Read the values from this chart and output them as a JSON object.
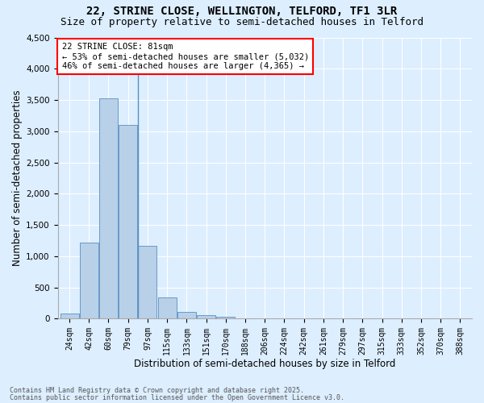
{
  "title1": "22, STRINE CLOSE, WELLINGTON, TELFORD, TF1 3LR",
  "title2": "Size of property relative to semi-detached houses in Telford",
  "xlabel": "Distribution of semi-detached houses by size in Telford",
  "ylabel": "Number of semi-detached properties",
  "footnote1": "Contains HM Land Registry data © Crown copyright and database right 2025.",
  "footnote2": "Contains public sector information licensed under the Open Government Licence v3.0.",
  "annotation_title": "22 STRINE CLOSE: 81sqm",
  "annotation_line2": "← 53% of semi-detached houses are smaller (5,032)",
  "annotation_line3": "46% of semi-detached houses are larger (4,365) →",
  "bar_labels": [
    "24sqm",
    "42sqm",
    "60sqm",
    "79sqm",
    "97sqm",
    "115sqm",
    "133sqm",
    "151sqm",
    "170sqm",
    "188sqm",
    "206sqm",
    "224sqm",
    "242sqm",
    "261sqm",
    "279sqm",
    "297sqm",
    "315sqm",
    "333sqm",
    "352sqm",
    "370sqm",
    "388sqm"
  ],
  "bar_values": [
    80,
    1220,
    3520,
    3100,
    1160,
    340,
    110,
    55,
    30,
    10,
    5,
    2,
    0,
    0,
    0,
    0,
    0,
    0,
    0,
    0,
    0
  ],
  "bar_color": "#b8d0e8",
  "bar_edge_color": "#5a8fc0",
  "property_line_x": 3.5,
  "ylim": [
    0,
    4500
  ],
  "yticks": [
    0,
    500,
    1000,
    1500,
    2000,
    2500,
    3000,
    3500,
    4000,
    4500
  ],
  "bg_color": "#ddeeff",
  "plot_bg": "#ddeeff",
  "grid_color": "#ffffff",
  "title1_fontsize": 10,
  "title2_fontsize": 9,
  "axes_label_fontsize": 8.5,
  "tick_fontsize": 7,
  "annotation_fontsize": 7.5
}
